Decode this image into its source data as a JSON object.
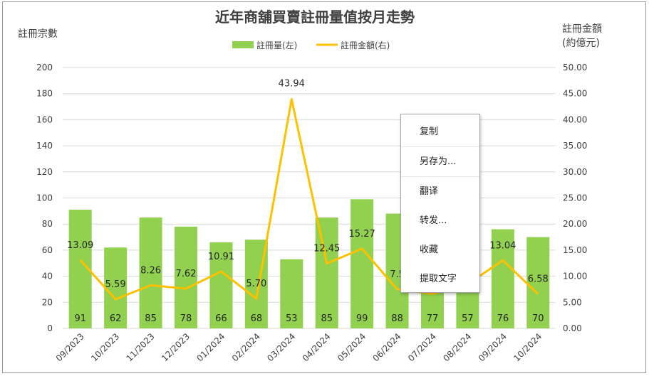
{
  "chart_data": {
    "type": "bar+line",
    "title": "近年商舖買賣註冊量值按月走勢",
    "categories": [
      "09/2023",
      "10/2023",
      "11/2023",
      "12/2023",
      "01/2024",
      "02/2024",
      "03/2024",
      "04/2024",
      "05/2024",
      "06/2024",
      "07/2024",
      "08/2024",
      "09/2024",
      "10/2024"
    ],
    "series": [
      {
        "name": "註冊量(左)",
        "type": "bar",
        "axis": "left",
        "color": "#92d050",
        "values": [
          91,
          62,
          85,
          78,
          66,
          68,
          53,
          85,
          99,
          88,
          77,
          57,
          76,
          70
        ]
      },
      {
        "name": "註冊金額(右)",
        "type": "line",
        "axis": "right",
        "color": "#ffc000",
        "values": [
          13.09,
          5.59,
          8.26,
          7.62,
          10.91,
          5.7,
          43.94,
          12.45,
          15.27,
          7.5,
          6.6,
          8.5,
          13.04,
          6.58
        ]
      }
    ],
    "bar_labels": [
      "91",
      "62",
      "85",
      "78",
      "66",
      "68",
      "53",
      "85",
      "99",
      "88",
      "77",
      "57",
      "76",
      "70"
    ],
    "line_labels": [
      "13.09",
      "5.59",
      "8.26",
      "7.62",
      "10.91",
      "5.70",
      "43.94",
      "12.45",
      "15.27",
      "7.5",
      "",
      "",
      "13.04",
      "6.58"
    ],
    "ylabel_left": "註冊宗數",
    "ylabel_right": [
      "註冊金額",
      "(約億元)"
    ],
    "ylim_left": [
      0,
      200
    ],
    "yticks_left": [
      "0",
      "20",
      "40",
      "60",
      "80",
      "100",
      "120",
      "140",
      "160",
      "180",
      "200"
    ],
    "ylim_right": [
      0,
      50
    ],
    "yticks_right": [
      "0.00",
      "5.00",
      "10.00",
      "15.00",
      "20.00",
      "25.00",
      "30.00",
      "35.00",
      "40.00",
      "45.00",
      "50.00"
    ],
    "grid": true,
    "legend_position": "top-center"
  },
  "context_menu": {
    "items": [
      "复制",
      "另存为...",
      "翻译",
      "转发...",
      "收藏",
      "提取文字"
    ]
  }
}
